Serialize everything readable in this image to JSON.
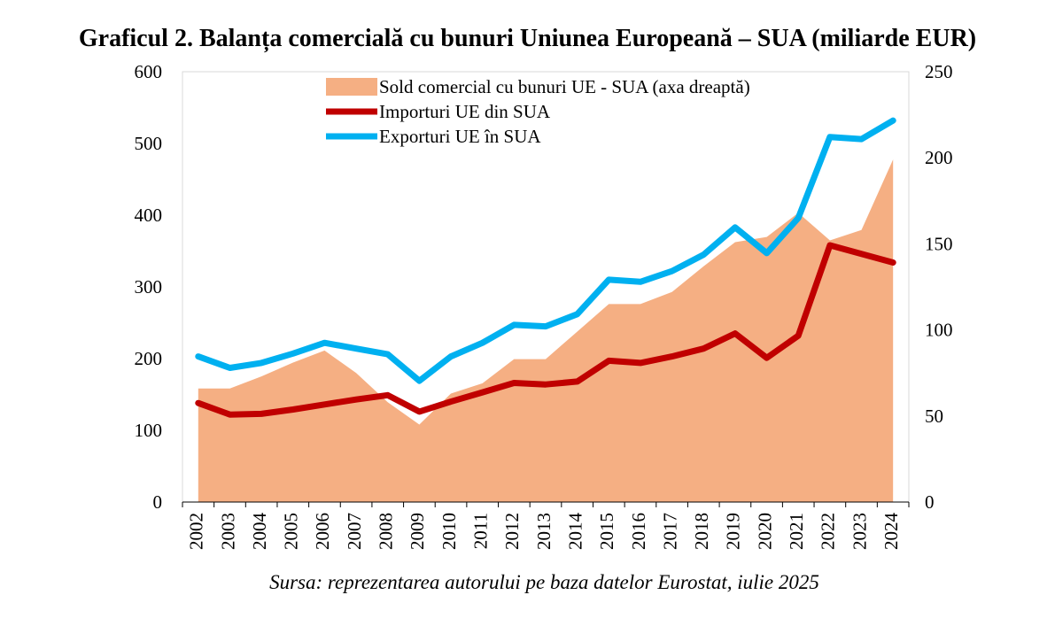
{
  "chart_data": {
    "type": "line",
    "title": "Graficul 2. Balanța comercială cu bunuri Uniunea Europeană – SUA (miliarde EUR)",
    "source": "Sursa: reprezentarea autorului pe baza datelor Eurostat, iulie 2025",
    "categories": [
      "2002",
      "2003",
      "2004",
      "2005",
      "2006",
      "2007",
      "2008",
      "2009",
      "2010",
      "2011",
      "2012",
      "2013",
      "2014",
      "2015",
      "2016",
      "2017",
      "2018",
      "2019",
      "2020",
      "2021",
      "2022",
      "2023",
      "2024"
    ],
    "y_left": {
      "ylim": [
        0,
        600
      ],
      "ticks": [
        0,
        100,
        200,
        300,
        400,
        500,
        600
      ]
    },
    "y_right": {
      "ylim": [
        0,
        250
      ],
      "ticks": [
        0,
        50,
        100,
        150,
        200,
        250
      ]
    },
    "legend_position": "top",
    "grid": false,
    "series": [
      {
        "name": "Sold comercial cu bunuri UE - SUA (axa dreaptă)",
        "kind": "area",
        "axis": "right",
        "color": "#F5AF83",
        "values": [
          66,
          66,
          73,
          81,
          88,
          75,
          58,
          45,
          63,
          69,
          83,
          83,
          99,
          115,
          115,
          122,
          137,
          151,
          154,
          168,
          152,
          158,
          199
        ]
      },
      {
        "name": "Importuri UE din SUA",
        "kind": "line",
        "axis": "left",
        "color": "#C00000",
        "values": [
          138,
          122,
          123,
          129,
          136,
          143,
          149,
          126,
          140,
          153,
          166,
          164,
          168,
          197,
          194,
          203,
          214,
          235,
          201,
          232,
          358,
          346,
          334
        ]
      },
      {
        "name": "Exporturi UE în SUA",
        "kind": "line",
        "axis": "left",
        "color": "#00B0F0",
        "values": [
          203,
          187,
          194,
          207,
          222,
          214,
          206,
          169,
          203,
          222,
          247,
          245,
          262,
          310,
          307,
          322,
          345,
          383,
          347,
          396,
          509,
          506,
          532
        ]
      }
    ]
  }
}
